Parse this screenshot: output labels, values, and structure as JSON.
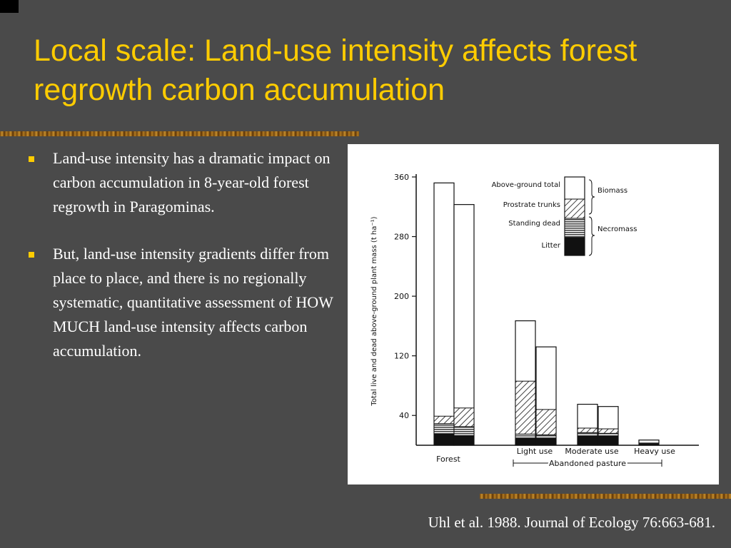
{
  "slide": {
    "title": "Local scale:  Land-use intensity affects forest regrowth carbon accumulation",
    "bullets": [
      "Land-use intensity has a dramatic impact on carbon accumulation in 8-year-old forest regrowth in Paragominas.",
      "But, land-use intensity gradients differ from place to place, and there is no regionally systematic, quantitative assessment of HOW MUCH land-use intensity affects carbon accumulation."
    ],
    "citation": "Uhl et al. 1988.  Journal of Ecology 76:663-681.",
    "colors": {
      "background": "#4a4a4a",
      "title": "#ffcc00",
      "bullet": "#ffcc00",
      "text": "#ffffff"
    }
  },
  "chart_data": {
    "type": "bar",
    "ylabel": "Total live and dead above-ground plant mass (t ha⁻¹)",
    "ylim": [
      0,
      360
    ],
    "yticks": [
      40,
      120,
      200,
      280,
      360
    ],
    "categories": [
      "Forest",
      "Light use",
      "Moderate use",
      "Heavy use"
    ],
    "group_label": "Abandoned pasture",
    "bars": [
      {
        "category": "Forest",
        "total": 352,
        "litter": 15,
        "standing_dead": 14,
        "prostrate_trunks": 10
      },
      {
        "category": "Forest",
        "total": 323,
        "litter": 13,
        "standing_dead": 12,
        "prostrate_trunks": 25
      },
      {
        "category": "Light use",
        "total": 167,
        "litter": 9,
        "standing_dead": 6,
        "prostrate_trunks": 71
      },
      {
        "category": "Light use",
        "total": 132,
        "litter": 9,
        "standing_dead": 5,
        "prostrate_trunks": 34
      },
      {
        "category": "Moderate use",
        "total": 55,
        "litter": 12,
        "standing_dead": 5,
        "prostrate_trunks": 6
      },
      {
        "category": "Moderate use",
        "total": 52,
        "litter": 12,
        "standing_dead": 4,
        "prostrate_trunks": 6
      },
      {
        "category": "Heavy use",
        "total": 7,
        "litter": 2,
        "standing_dead": 1,
        "prostrate_trunks": 0
      }
    ],
    "legend": {
      "items": [
        "Above-ground total",
        "Prostrate trunks",
        "Standing dead",
        "Litter"
      ],
      "groups": [
        "Biomass",
        "Necromass"
      ],
      "placement": "top-right"
    }
  }
}
